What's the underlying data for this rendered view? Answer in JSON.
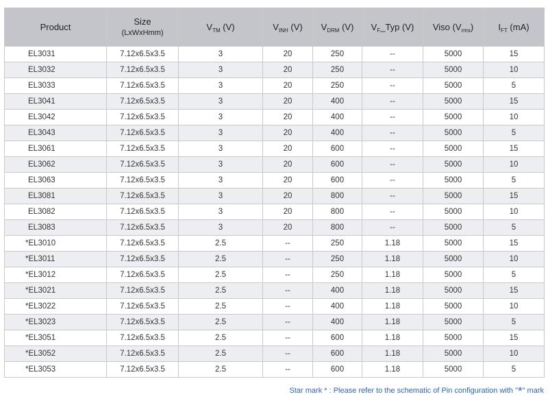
{
  "header": {
    "product": "Product",
    "size_line1": "Size",
    "size_line2": "(LxWxHmm)",
    "vtm_base": "V",
    "vtm_sub": "TM",
    "vtm_unit": " (V)",
    "vinh_base": "V",
    "vinh_sub": "INH",
    "vinh_unit": " (V)",
    "vdrm_base": "V",
    "vdrm_sub": "DRM",
    "vdrm_unit": " (V)",
    "vf_base": "V",
    "vf_sub": "F",
    "vf_unit": "_Typ (V)",
    "viso_base": "Viso (V",
    "viso_sub": "rms",
    "viso_unit": ")",
    "ift_base": "I",
    "ift_sub": "FT",
    "ift_unit": " (mA)"
  },
  "rows": [
    {
      "product": "EL3031",
      "size": "7.12x6.5x3.5",
      "vtm": "3",
      "vinh": "20",
      "vdrm": "250",
      "vf": "--",
      "viso": "5000",
      "ift": "15"
    },
    {
      "product": "EL3032",
      "size": "7.12x6.5x3.5",
      "vtm": "3",
      "vinh": "20",
      "vdrm": "250",
      "vf": "--",
      "viso": "5000",
      "ift": "10"
    },
    {
      "product": "EL3033",
      "size": "7.12x6.5x3.5",
      "vtm": "3",
      "vinh": "20",
      "vdrm": "250",
      "vf": "--",
      "viso": "5000",
      "ift": "5"
    },
    {
      "product": "EL3041",
      "size": "7.12x6.5x3.5",
      "vtm": "3",
      "vinh": "20",
      "vdrm": "400",
      "vf": "--",
      "viso": "5000",
      "ift": "15"
    },
    {
      "product": "EL3042",
      "size": "7.12x6.5x3.5",
      "vtm": "3",
      "vinh": "20",
      "vdrm": "400",
      "vf": "--",
      "viso": "5000",
      "ift": "10"
    },
    {
      "product": "EL3043",
      "size": "7.12x6.5x3.5",
      "vtm": "3",
      "vinh": "20",
      "vdrm": "400",
      "vf": "--",
      "viso": "5000",
      "ift": "5"
    },
    {
      "product": "EL3061",
      "size": "7.12x6.5x3.5",
      "vtm": "3",
      "vinh": "20",
      "vdrm": "600",
      "vf": "--",
      "viso": "5000",
      "ift": "15"
    },
    {
      "product": "EL3062",
      "size": "7.12x6.5x3.5",
      "vtm": "3",
      "vinh": "20",
      "vdrm": "600",
      "vf": "--",
      "viso": "5000",
      "ift": "10"
    },
    {
      "product": "EL3063",
      "size": "7.12x6.5x3.5",
      "vtm": "3",
      "vinh": "20",
      "vdrm": "600",
      "vf": "--",
      "viso": "5000",
      "ift": "5"
    },
    {
      "product": "EL3081",
      "size": "7.12x6.5x3.5",
      "vtm": "3",
      "vinh": "20",
      "vdrm": "800",
      "vf": "--",
      "viso": "5000",
      "ift": "15"
    },
    {
      "product": "EL3082",
      "size": "7.12x6.5x3.5",
      "vtm": "3",
      "vinh": "20",
      "vdrm": "800",
      "vf": "--",
      "viso": "5000",
      "ift": "10"
    },
    {
      "product": "EL3083",
      "size": "7.12x6.5x3.5",
      "vtm": "3",
      "vinh": "20",
      "vdrm": "800",
      "vf": "--",
      "viso": "5000",
      "ift": "5"
    },
    {
      "product": "*EL3010",
      "size": "7.12x6.5x3.5",
      "vtm": "2.5",
      "vinh": "--",
      "vdrm": "250",
      "vf": "1.18",
      "viso": "5000",
      "ift": "15"
    },
    {
      "product": "*EL3011",
      "size": "7.12x6.5x3.5",
      "vtm": "2.5",
      "vinh": "--",
      "vdrm": "250",
      "vf": "1.18",
      "viso": "5000",
      "ift": "10"
    },
    {
      "product": "*EL3012",
      "size": "7.12x6.5x3.5",
      "vtm": "2.5",
      "vinh": "--",
      "vdrm": "250",
      "vf": "1.18",
      "viso": "5000",
      "ift": "5"
    },
    {
      "product": "*EL3021",
      "size": "7.12x6.5x3.5",
      "vtm": "2.5",
      "vinh": "--",
      "vdrm": "400",
      "vf": "1.18",
      "viso": "5000",
      "ift": "15"
    },
    {
      "product": "*EL3022",
      "size": "7.12x6.5x3.5",
      "vtm": "2.5",
      "vinh": "--",
      "vdrm": "400",
      "vf": "1.18",
      "viso": "5000",
      "ift": "10"
    },
    {
      "product": "*EL3023",
      "size": "7.12x6.5x3.5",
      "vtm": "2.5",
      "vinh": "--",
      "vdrm": "400",
      "vf": "1.18",
      "viso": "5000",
      "ift": "5"
    },
    {
      "product": "*EL3051",
      "size": "7.12x6.5x3.5",
      "vtm": "2.5",
      "vinh": "--",
      "vdrm": "600",
      "vf": "1.18",
      "viso": "5000",
      "ift": "15"
    },
    {
      "product": "*EL3052",
      "size": "7.12x6.5x3.5",
      "vtm": "2.5",
      "vinh": "--",
      "vdrm": "600",
      "vf": "1.18",
      "viso": "5000",
      "ift": "10"
    },
    {
      "product": "*EL3053",
      "size": "7.12x6.5x3.5",
      "vtm": "2.5",
      "vinh": "--",
      "vdrm": "600",
      "vf": "1.18",
      "viso": "5000",
      "ift": "5"
    }
  ],
  "footnote": {
    "prefix": "Star mark * : Please refer to the schematic of Pin configuration with \"",
    "star": "*",
    "suffix": "\" mark"
  }
}
